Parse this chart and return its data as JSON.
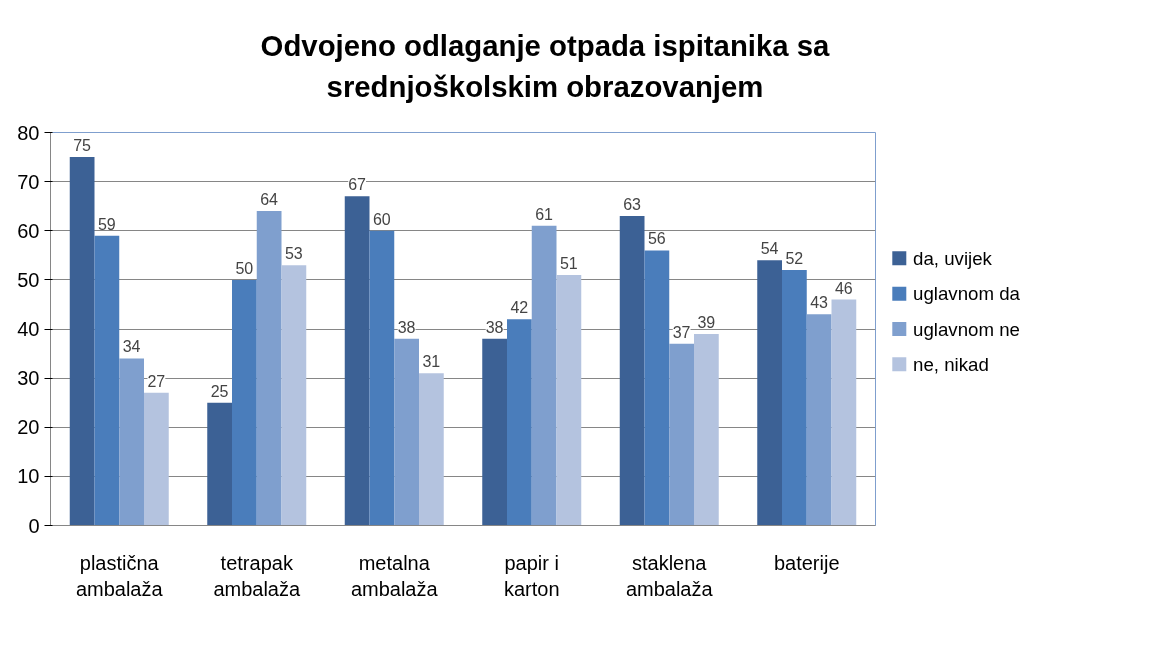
{
  "chart_data": {
    "type": "bar",
    "title": "Odvojeno odlaganje otpada ispitanika sa srednjoškolskim obrazovanjem",
    "categories": [
      "plastična ambalaža",
      "tetrapak ambalaža",
      "metalna ambalaža",
      "papir i karton",
      "staklena ambalaža",
      "baterije"
    ],
    "series": [
      {
        "name": "da, uvijek",
        "color": "#3c6195",
        "values": [
          75,
          25,
          67,
          38,
          63,
          54
        ]
      },
      {
        "name": "uglavnom da",
        "color": "#4a7dbb",
        "values": [
          59,
          50,
          60,
          42,
          56,
          52
        ]
      },
      {
        "name": "uglavnom ne",
        "color": "#7f9fce",
        "values": [
          34,
          64,
          38,
          61,
          37,
          43
        ]
      },
      {
        "name": "ne, nikad",
        "color": "#b4c3df",
        "values": [
          27,
          53,
          31,
          51,
          39,
          46
        ]
      }
    ],
    "ylim": [
      0,
      80
    ],
    "yticks": [
      0,
      10,
      20,
      30,
      40,
      50,
      60,
      70,
      80
    ],
    "grid": "y",
    "legend": "right",
    "data_labels": true
  }
}
